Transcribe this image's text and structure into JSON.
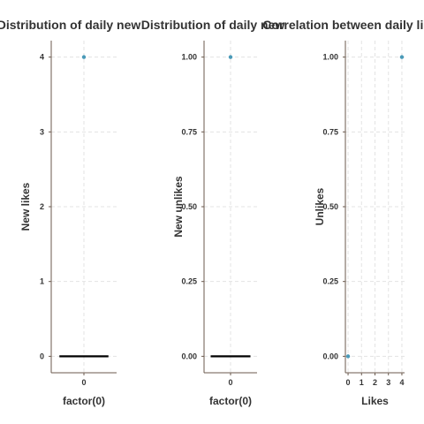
{
  "chart_data": [
    {
      "type": "boxplot",
      "title": "Distribution of daily new",
      "xlabel": "factor(0)",
      "ylabel": "New likes",
      "categories": [
        "0"
      ],
      "yticks": [
        0,
        1,
        2,
        3,
        4
      ],
      "ytick_labels": [
        "0",
        "1",
        "2",
        "3",
        "4"
      ],
      "ylim": [
        -0.22,
        4.22
      ],
      "box": {
        "category": "0",
        "median": 0,
        "q1": 0,
        "q3": 0
      },
      "outliers": [
        {
          "category": "0",
          "y": 4
        }
      ],
      "grid": true,
      "colors": {
        "point": "#4a9ab8",
        "box": "#000000"
      }
    },
    {
      "type": "boxplot",
      "title": "Distribution of daily new",
      "xlabel": "factor(0)",
      "ylabel": "New unlikes",
      "categories": [
        "0"
      ],
      "yticks": [
        0,
        0.25,
        0.5,
        0.75,
        1.0
      ],
      "ytick_labels": [
        "0.00",
        "0.25",
        "0.50",
        "0.75",
        "1.00"
      ],
      "ylim": [
        -0.055,
        1.055
      ],
      "box": {
        "category": "0",
        "median": 0,
        "q1": 0,
        "q3": 0
      },
      "outliers": [
        {
          "category": "0",
          "y": 1
        }
      ],
      "grid": true,
      "colors": {
        "point": "#4a9ab8",
        "box": "#000000"
      }
    },
    {
      "type": "scatter",
      "title": "Correlation between daily likes",
      "xlabel": "Likes",
      "ylabel": "Unlikes",
      "xticks": [
        0,
        1,
        2,
        3,
        4
      ],
      "xtick_labels": [
        "0",
        "1",
        "2",
        "3",
        "4"
      ],
      "yticks": [
        0,
        0.25,
        0.5,
        0.75,
        1.0
      ],
      "ytick_labels": [
        "0.00",
        "0.25",
        "0.50",
        "0.75",
        "1.00"
      ],
      "xlim": [
        -0.2,
        4.2
      ],
      "ylim": [
        -0.055,
        1.055
      ],
      "points": [
        {
          "x": 0,
          "y": 0
        },
        {
          "x": 4,
          "y": 1
        }
      ],
      "grid": true,
      "colors": {
        "point": "#4a9ab8"
      }
    }
  ]
}
